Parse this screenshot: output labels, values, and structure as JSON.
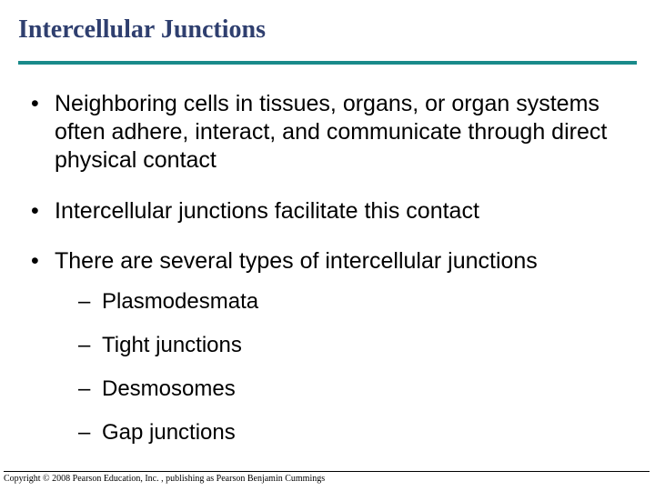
{
  "title": "Intercellular Junctions",
  "rule_color": "#1a8a8a",
  "title_color": "#2f3f6f",
  "bullets": [
    {
      "text": "Neighboring cells in tissues, organs, or organ systems often adhere, interact, and communicate through direct physical contact"
    },
    {
      "text": "Intercellular junctions facilitate this contact"
    },
    {
      "text": "There are several types of intercellular junctions",
      "sub": [
        "Plasmodesmata",
        "Tight junctions",
        "Desmosomes",
        "Gap junctions"
      ]
    }
  ],
  "copyright": "Copyright © 2008 Pearson Education, Inc. , publishing as Pearson Benjamin Cummings"
}
